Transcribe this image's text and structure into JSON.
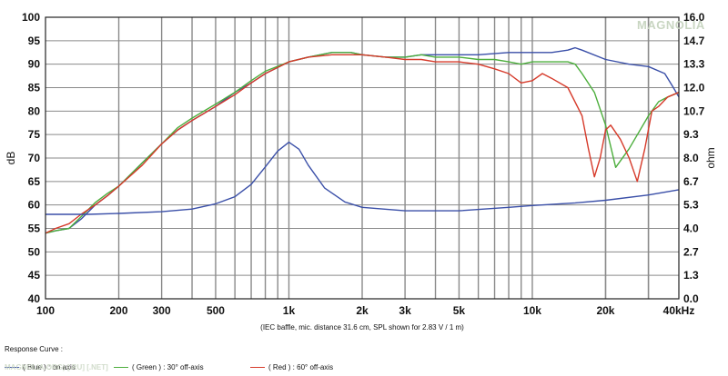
{
  "chart_data": {
    "type": "line",
    "title": "",
    "xlabel": "",
    "ylabel": "dB",
    "y2label": "ohm",
    "x_scale": "log",
    "xlim": [
      100,
      40000
    ],
    "ylim": [
      40,
      100
    ],
    "y2lim": [
      0.0,
      16.0
    ],
    "grid": true,
    "x_ticks": [
      {
        "value": 100,
        "label": "100"
      },
      {
        "value": 200,
        "label": "200"
      },
      {
        "value": 300,
        "label": "300"
      },
      {
        "value": 500,
        "label": "500"
      },
      {
        "value": 1000,
        "label": "1k"
      },
      {
        "value": 2000,
        "label": "2k"
      },
      {
        "value": 3000,
        "label": "3k"
      },
      {
        "value": 5000,
        "label": "5k"
      },
      {
        "value": 10000,
        "label": "10k"
      },
      {
        "value": 20000,
        "label": "20k"
      },
      {
        "value": 40000,
        "label": "40kHz"
      }
    ],
    "y_ticks": [
      "40",
      "45",
      "50",
      "55",
      "60",
      "65",
      "70",
      "75",
      "80",
      "85",
      "90",
      "95",
      "100"
    ],
    "y2_ticks": [
      "0.0",
      "1.3",
      "2.7",
      "4.0",
      "5.3",
      "6.7",
      "8.0",
      "9.3",
      "10.7",
      "12.0",
      "13.3",
      "14.7",
      "16.0"
    ],
    "annotation": "(IEC baffle, mic. distance 31.6 cm, SPL shown for 2.83 V / 1 m)",
    "series": [
      {
        "legend": "( Blue ) : on axis",
        "color": "#3a4fa8",
        "axis": "left",
        "x": [
          100,
          110,
          125,
          140,
          160,
          180,
          200,
          250,
          300,
          350,
          400,
          500,
          600,
          700,
          800,
          1000,
          1200,
          1500,
          1800,
          2000,
          2500,
          3000,
          3500,
          4000,
          5000,
          6000,
          8000,
          10000,
          12000,
          14000,
          15000,
          16000,
          20000,
          25000,
          30000,
          35000,
          38000,
          40000
        ],
        "y": [
          54,
          54.5,
          55,
          57,
          60,
          62,
          64,
          69,
          73,
          76,
          78,
          81,
          84,
          86,
          88,
          90.5,
          91.5,
          92.5,
          92.5,
          92,
          91.5,
          91.5,
          92,
          92,
          92,
          92,
          92.5,
          92.5,
          92.5,
          93,
          93.5,
          93,
          91,
          90,
          89.5,
          88,
          85,
          83
        ]
      },
      {
        "legend": "( Green ) : 30° off-axis",
        "color": "#4cae3c",
        "axis": "left",
        "x": [
          100,
          110,
          125,
          140,
          160,
          180,
          200,
          250,
          300,
          350,
          400,
          500,
          600,
          700,
          800,
          1000,
          1200,
          1500,
          1800,
          2000,
          2500,
          3000,
          3500,
          4000,
          5000,
          6000,
          7000,
          8000,
          9000,
          10000,
          12000,
          14000,
          15000,
          16000,
          18000,
          20000,
          22000,
          25000,
          30000,
          33000,
          36000,
          40000
        ],
        "y": [
          54,
          54.5,
          55,
          57.5,
          60.5,
          62.5,
          64,
          69,
          73,
          76.5,
          78.5,
          81.5,
          84,
          86.5,
          88.5,
          90.5,
          91.5,
          92.5,
          92.5,
          92,
          91.5,
          91.5,
          92,
          91.5,
          91.5,
          91,
          91,
          90.5,
          90,
          90.5,
          90.5,
          90.5,
          90,
          88,
          84,
          77,
          68,
          72,
          79,
          82,
          83,
          84
        ]
      },
      {
        "legend": "( Red ) : 60° off-axis",
        "color": "#d63a2a",
        "axis": "left",
        "x": [
          100,
          110,
          125,
          140,
          160,
          180,
          200,
          250,
          300,
          350,
          400,
          500,
          600,
          700,
          800,
          1000,
          1200,
          1500,
          1800,
          2000,
          2500,
          3000,
          3500,
          4000,
          5000,
          6000,
          7000,
          8000,
          9000,
          10000,
          11000,
          12000,
          14000,
          16000,
          17000,
          18000,
          19000,
          20000,
          21000,
          23000,
          25000,
          27000,
          29000,
          31000,
          33000,
          36000,
          40000
        ],
        "y": [
          54,
          55,
          56,
          58,
          60,
          62,
          64,
          68.5,
          73,
          76,
          78,
          81,
          83.5,
          86,
          88,
          90.5,
          91.5,
          92,
          92,
          92,
          91.5,
          91,
          91,
          90.5,
          90.5,
          90,
          89,
          88,
          86,
          86.5,
          88,
          87,
          85,
          79,
          72,
          66,
          70,
          76,
          77,
          74,
          70,
          65,
          72,
          80,
          81,
          83,
          84
        ]
      },
      {
        "legend": "",
        "color": "#3a4fa8",
        "axis": "right",
        "x": [
          100,
          150,
          200,
          300,
          400,
          500,
          600,
          700,
          800,
          900,
          1000,
          1100,
          1200,
          1400,
          1700,
          2000,
          3000,
          5000,
          8000,
          10000,
          15000,
          20000,
          30000,
          40000
        ],
        "y": [
          4.8,
          4.8,
          4.85,
          4.95,
          5.1,
          5.4,
          5.8,
          6.5,
          7.5,
          8.4,
          8.9,
          8.5,
          7.6,
          6.3,
          5.5,
          5.2,
          5.0,
          5.0,
          5.2,
          5.3,
          5.45,
          5.6,
          5.9,
          6.2
        ]
      }
    ]
  },
  "legend": {
    "caption": "Response Curve :",
    "blue": "( Blue ) : on axis",
    "green": "( Green ) : 30° off-axis",
    "red": "( Red ) : 60° off-axis"
  },
  "watermark": {
    "top": "MAGNOLIA",
    "bottom": "MAGNOLIA.ORG) [.RU] [.NET]"
  }
}
